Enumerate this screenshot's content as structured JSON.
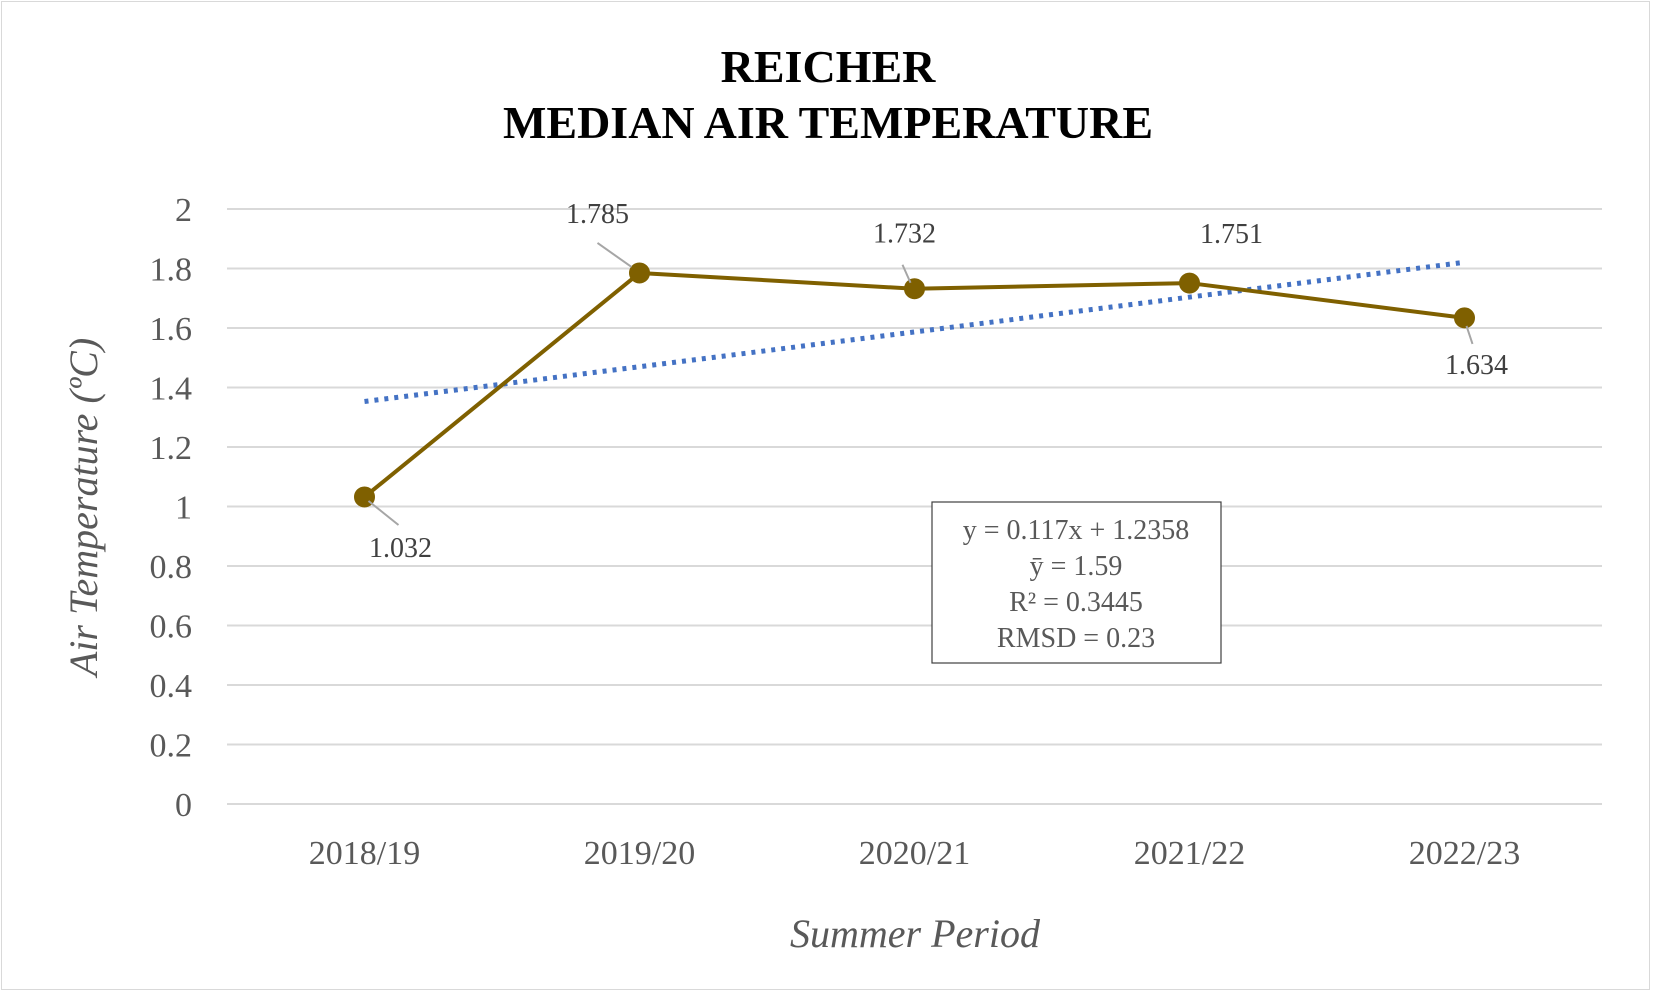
{
  "chart_data": {
    "type": "line",
    "title": [
      "REICHER",
      "MEDIAN AIR TEMPERATURE"
    ],
    "xlabel": "Summer Period",
    "ylabel": "Air Temperature (ºC)",
    "categories": [
      "2018/19",
      "2019/20",
      "2020/21",
      "2021/22",
      "2022/23"
    ],
    "series": [
      {
        "values": [
          1.032,
          1.785,
          1.732,
          1.751,
          1.634
        ],
        "data_labels": [
          "1.032",
          "1.785",
          "1.732",
          "1.751",
          "1.634"
        ],
        "color": "#7f6000"
      }
    ],
    "trendline": {
      "type": "linear",
      "slope": 0.117,
      "intercept": 1.2358,
      "color": "#4472c4",
      "style": "dotted"
    },
    "stats_box": [
      "y = 0.117x + 1.2358",
      "ȳ = 1.59",
      "R² = 0.3445",
      "RMSD = 0.23"
    ],
    "ylim": [
      0,
      2
    ],
    "yticks": [
      "0",
      "0.2",
      "0.4",
      "0.6",
      "0.8",
      "1",
      "1.2",
      "1.4",
      "1.6",
      "1.8",
      "2"
    ],
    "grid": true,
    "legend": "none"
  }
}
